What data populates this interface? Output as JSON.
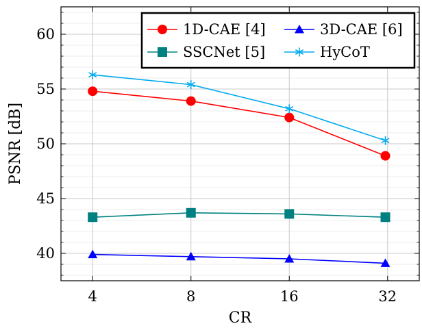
{
  "chart_data": {
    "type": "line",
    "xlabel": "CR",
    "ylabel": "PSNR [dB]",
    "x_ticks": [
      "4",
      "8",
      "16",
      "32"
    ],
    "y_ticks": [
      "40",
      "45",
      "50",
      "55",
      "60"
    ],
    "ylim": [
      37.5,
      62.5
    ],
    "grid": true,
    "legend_position": "top-right",
    "series": [
      {
        "name": "1D-CAE [4]",
        "color": "#ff0000",
        "marker": "circle",
        "points": [
          [
            4,
            54.8
          ],
          [
            8,
            53.9
          ],
          [
            16,
            52.4
          ],
          [
            31.5,
            48.9
          ]
        ]
      },
      {
        "name": "3D-CAE [6]",
        "color": "#0000ff",
        "marker": "triangle",
        "points": [
          [
            4,
            39.9
          ],
          [
            8,
            39.7
          ],
          [
            16,
            39.5
          ],
          [
            31.5,
            39.1
          ]
        ]
      },
      {
        "name": "SSCNet [5]",
        "color": "#008080",
        "marker": "square",
        "points": [
          [
            4,
            43.3
          ],
          [
            8,
            43.7
          ],
          [
            16,
            43.6
          ],
          [
            31.5,
            43.3
          ]
        ]
      },
      {
        "name": "HyCoT",
        "color": "#00aaee",
        "marker": "asterisk",
        "points": [
          [
            4,
            56.3
          ],
          [
            8,
            55.4
          ],
          [
            16,
            53.2
          ],
          [
            31.5,
            50.3
          ]
        ]
      }
    ]
  }
}
